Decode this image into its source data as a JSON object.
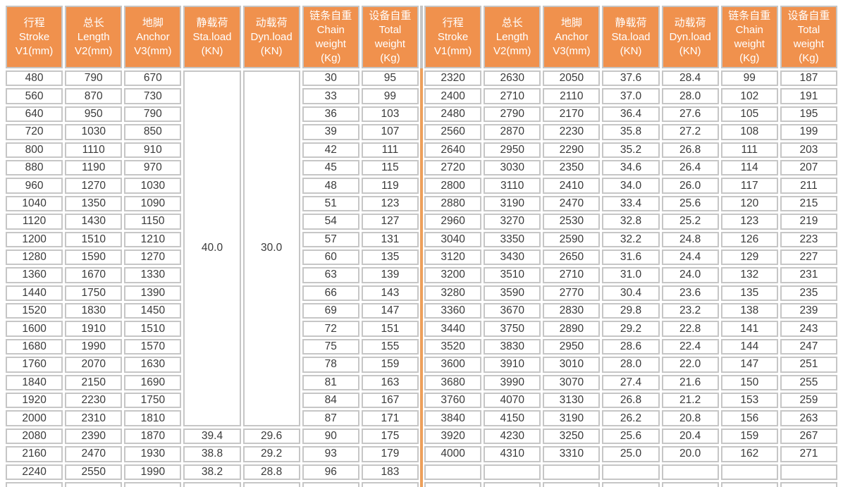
{
  "colors": {
    "header_bg": "#F0914D",
    "header_text": "#FFFFFF",
    "cell_border": "#C6C6C6",
    "cell_text": "#3A3A3A",
    "divider_orange": "#EDA05C",
    "page_bg": "#FFFFFF"
  },
  "table": {
    "column_keys": [
      "stroke",
      "length",
      "anchor",
      "sta-load",
      "dyn-load",
      "chain-weight",
      "total-weight"
    ],
    "header_columns": [
      {
        "lines": [
          "行程",
          "Stroke",
          "V1(mm)"
        ]
      },
      {
        "lines": [
          "总长",
          "Length",
          "V2(mm)"
        ]
      },
      {
        "lines": [
          "地脚",
          "Anchor",
          "V3(mm)"
        ]
      },
      {
        "lines": [
          "静载荷",
          "Sta.load",
          "(KN)"
        ]
      },
      {
        "lines": [
          "动载荷",
          "Dyn.load",
          "(KN)"
        ]
      },
      {
        "lines": [
          "链条自重",
          "Chain",
          "weight",
          "(Kg)"
        ]
      },
      {
        "lines": [
          "设备自重",
          "Total",
          "weight",
          "(Kg)"
        ]
      }
    ],
    "left": {
      "merged": {
        "sta_load": "40.0",
        "dyn_load": "30.0",
        "rowspan": 20
      },
      "rows": [
        [
          "480",
          "790",
          "670",
          "",
          "",
          "30",
          "95"
        ],
        [
          "560",
          "870",
          "730",
          "",
          "",
          "33",
          "99"
        ],
        [
          "640",
          "950",
          "790",
          "",
          "",
          "36",
          "103"
        ],
        [
          "720",
          "1030",
          "850",
          "",
          "",
          "39",
          "107"
        ],
        [
          "800",
          "1110",
          "910",
          "",
          "",
          "42",
          "111"
        ],
        [
          "880",
          "1190",
          "970",
          "",
          "",
          "45",
          "115"
        ],
        [
          "960",
          "1270",
          "1030",
          "",
          "",
          "48",
          "119"
        ],
        [
          "1040",
          "1350",
          "1090",
          "",
          "",
          "51",
          "123"
        ],
        [
          "1120",
          "1430",
          "1150",
          "",
          "",
          "54",
          "127"
        ],
        [
          "1200",
          "1510",
          "1210",
          "",
          "",
          "57",
          "131"
        ],
        [
          "1280",
          "1590",
          "1270",
          "",
          "",
          "60",
          "135"
        ],
        [
          "1360",
          "1670",
          "1330",
          "",
          "",
          "63",
          "139"
        ],
        [
          "1440",
          "1750",
          "1390",
          "",
          "",
          "66",
          "143"
        ],
        [
          "1520",
          "1830",
          "1450",
          "",
          "",
          "69",
          "147"
        ],
        [
          "1600",
          "1910",
          "1510",
          "",
          "",
          "72",
          "151"
        ],
        [
          "1680",
          "1990",
          "1570",
          "",
          "",
          "75",
          "155"
        ],
        [
          "1760",
          "2070",
          "1630",
          "",
          "",
          "78",
          "159"
        ],
        [
          "1840",
          "2150",
          "1690",
          "",
          "",
          "81",
          "163"
        ],
        [
          "1920",
          "2230",
          "1750",
          "",
          "",
          "84",
          "167"
        ],
        [
          "2000",
          "2310",
          "1810",
          "",
          "",
          "87",
          "171"
        ],
        [
          "2080",
          "2390",
          "1870",
          "39.4",
          "29.6",
          "90",
          "175"
        ],
        [
          "2160",
          "2470",
          "1930",
          "38.8",
          "29.2",
          "93",
          "179"
        ],
        [
          "2240",
          "2550",
          "1990",
          "38.2",
          "28.8",
          "96",
          "183"
        ],
        [
          "",
          "",
          "",
          "",
          "",
          "",
          ""
        ]
      ]
    },
    "right": {
      "rows": [
        [
          "2320",
          "2630",
          "2050",
          "37.6",
          "28.4",
          "99",
          "187"
        ],
        [
          "2400",
          "2710",
          "2110",
          "37.0",
          "28.0",
          "102",
          "191"
        ],
        [
          "2480",
          "2790",
          "2170",
          "36.4",
          "27.6",
          "105",
          "195"
        ],
        [
          "2560",
          "2870",
          "2230",
          "35.8",
          "27.2",
          "108",
          "199"
        ],
        [
          "2640",
          "2950",
          "2290",
          "35.2",
          "26.8",
          "111",
          "203"
        ],
        [
          "2720",
          "3030",
          "2350",
          "34.6",
          "26.4",
          "114",
          "207"
        ],
        [
          "2800",
          "3110",
          "2410",
          "34.0",
          "26.0",
          "117",
          "211"
        ],
        [
          "2880",
          "3190",
          "2470",
          "33.4",
          "25.6",
          "120",
          "215"
        ],
        [
          "2960",
          "3270",
          "2530",
          "32.8",
          "25.2",
          "123",
          "219"
        ],
        [
          "3040",
          "3350",
          "2590",
          "32.2",
          "24.8",
          "126",
          "223"
        ],
        [
          "3120",
          "3430",
          "2650",
          "31.6",
          "24.4",
          "129",
          "227"
        ],
        [
          "3200",
          "3510",
          "2710",
          "31.0",
          "24.0",
          "132",
          "231"
        ],
        [
          "3280",
          "3590",
          "2770",
          "30.4",
          "23.6",
          "135",
          "235"
        ],
        [
          "3360",
          "3670",
          "2830",
          "29.8",
          "23.2",
          "138",
          "239"
        ],
        [
          "3440",
          "3750",
          "2890",
          "29.2",
          "22.8",
          "141",
          "243"
        ],
        [
          "3520",
          "3830",
          "2950",
          "28.6",
          "22.4",
          "144",
          "247"
        ],
        [
          "3600",
          "3910",
          "3010",
          "28.0",
          "22.0",
          "147",
          "251"
        ],
        [
          "3680",
          "3990",
          "3070",
          "27.4",
          "21.6",
          "150",
          "255"
        ],
        [
          "3760",
          "4070",
          "3130",
          "26.8",
          "21.2",
          "153",
          "259"
        ],
        [
          "3840",
          "4150",
          "3190",
          "26.2",
          "20.8",
          "156",
          "263"
        ],
        [
          "3920",
          "4230",
          "3250",
          "25.6",
          "20.4",
          "159",
          "267"
        ],
        [
          "4000",
          "4310",
          "3310",
          "25.0",
          "20.0",
          "162",
          "271"
        ],
        [
          "",
          "",
          "",
          "",
          "",
          "",
          ""
        ],
        [
          "",
          "",
          "",
          "",
          "",
          "",
          ""
        ]
      ]
    }
  }
}
